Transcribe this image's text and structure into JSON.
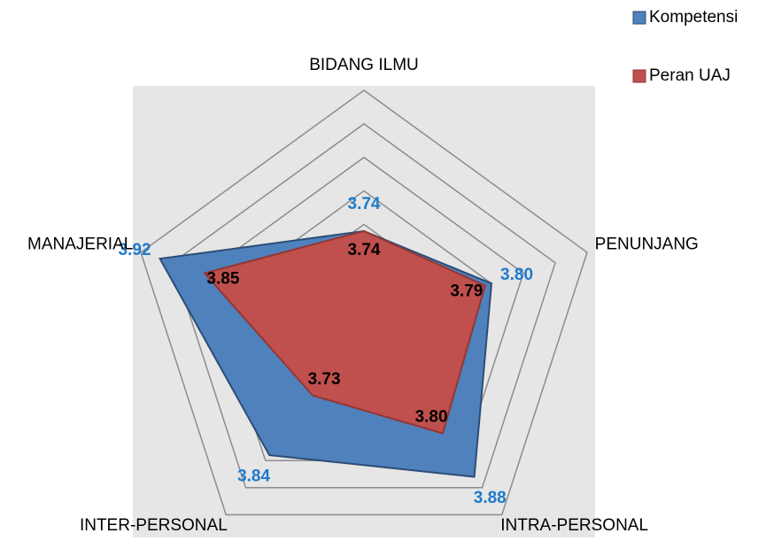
{
  "chart_data": {
    "type": "radar",
    "categories": [
      "BIDANG ILMU",
      "PENUNJANG",
      "INTRA-PERSONAL",
      "INTER-PERSONAL",
      "MANAJERIAL"
    ],
    "ylim": [
      3.6,
      3.95
    ],
    "yticks": [
      3.6,
      3.65,
      3.7,
      3.75,
      3.8,
      3.85,
      3.9,
      3.95
    ],
    "legend": "top-right",
    "series": [
      {
        "name": "Kompetensi",
        "color": "#4f81bd",
        "label_color": "#1f7acc",
        "values": [
          3.74,
          3.8,
          3.88,
          3.84,
          3.92
        ],
        "value_labels": [
          "3.74",
          "3.80",
          "3.88",
          "3.84",
          "3.92"
        ]
      },
      {
        "name": "Peran UAJ",
        "color": "#c0504d",
        "label_color": "#000000",
        "values": [
          3.74,
          3.79,
          3.8,
          3.73,
          3.85
        ],
        "value_labels": [
          "3.74",
          "3.79",
          "3.80",
          "3.73",
          "3.85"
        ]
      }
    ]
  }
}
